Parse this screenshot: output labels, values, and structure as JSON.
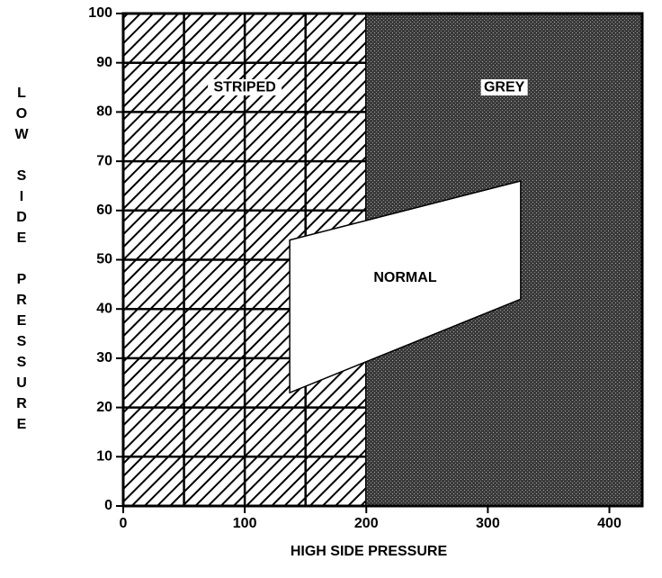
{
  "chart_data": {
    "type": "region",
    "x_label": "HIGH SIDE PRESSURE",
    "y_label": "LOW SIDE PRESSURE",
    "xlim": [
      0,
      427
    ],
    "ylim": [
      0,
      100
    ],
    "xticks": [
      0,
      100,
      200,
      300,
      400
    ],
    "yticks": [
      0,
      10,
      20,
      30,
      40,
      50,
      60,
      70,
      80,
      90,
      100
    ],
    "regions": [
      {
        "name": "STRIPED",
        "x": [
          0,
          200
        ],
        "fill": "hatch",
        "color": "#000000",
        "grid_x": [
          50,
          100,
          150
        ]
      },
      {
        "name": "GREY",
        "x": [
          200,
          427
        ],
        "fill": "solid",
        "color": "#4d4d4d"
      }
    ],
    "polygon": {
      "name": "NORMAL",
      "color": "#ffffff",
      "x": [
        137,
        327,
        327,
        137
      ],
      "y": [
        54,
        66,
        42,
        23
      ]
    }
  }
}
